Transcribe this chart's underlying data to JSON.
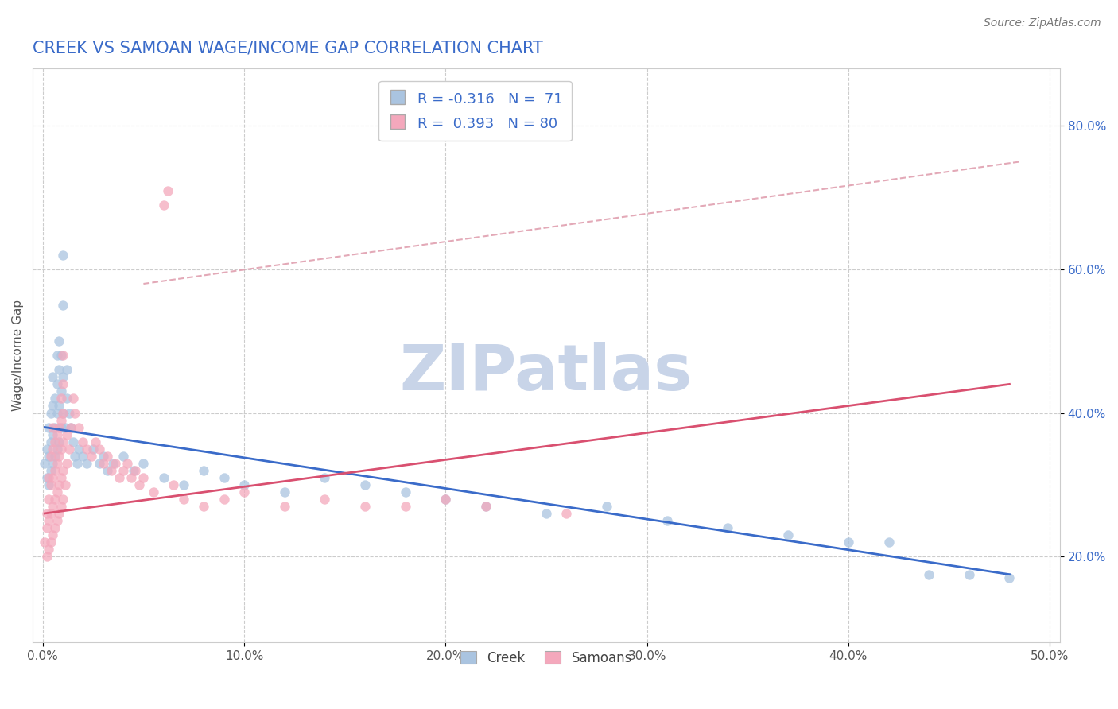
{
  "title": "CREEK VS SAMOAN WAGE/INCOME GAP CORRELATION CHART",
  "source": "Source: ZipAtlas.com",
  "ylabel": "Wage/Income Gap",
  "xlim": [
    -0.005,
    0.505
  ],
  "ylim": [
    0.08,
    0.88
  ],
  "xticks": [
    0.0,
    0.1,
    0.2,
    0.3,
    0.4,
    0.5
  ],
  "xticklabels": [
    "0.0%",
    "10.0%",
    "20.0%",
    "30.0%",
    "40.0%",
    "50.0%"
  ],
  "yticks": [
    0.2,
    0.4,
    0.6,
    0.8
  ],
  "yticklabels": [
    "20.0%",
    "40.0%",
    "60.0%",
    "80.0%"
  ],
  "creek_color": "#aac4e0",
  "samoan_color": "#f4a8bc",
  "creek_line_color": "#3a6bc9",
  "samoan_line_color": "#d95070",
  "dashed_line_color": "#e0a0b0",
  "title_color": "#3a6bc9",
  "title_fontsize": 15,
  "watermark": "ZIPatlas",
  "watermark_color": "#c8d4e8",
  "creek_dots": [
    [
      0.001,
      0.33
    ],
    [
      0.002,
      0.31
    ],
    [
      0.002,
      0.35
    ],
    [
      0.003,
      0.3
    ],
    [
      0.003,
      0.34
    ],
    [
      0.003,
      0.38
    ],
    [
      0.004,
      0.32
    ],
    [
      0.004,
      0.36
    ],
    [
      0.004,
      0.4
    ],
    [
      0.005,
      0.33
    ],
    [
      0.005,
      0.37
    ],
    [
      0.005,
      0.41
    ],
    [
      0.005,
      0.45
    ],
    [
      0.006,
      0.34
    ],
    [
      0.006,
      0.38
    ],
    [
      0.006,
      0.42
    ],
    [
      0.007,
      0.35
    ],
    [
      0.007,
      0.4
    ],
    [
      0.007,
      0.44
    ],
    [
      0.007,
      0.48
    ],
    [
      0.008,
      0.36
    ],
    [
      0.008,
      0.41
    ],
    [
      0.008,
      0.46
    ],
    [
      0.008,
      0.5
    ],
    [
      0.009,
      0.38
    ],
    [
      0.009,
      0.43
    ],
    [
      0.009,
      0.48
    ],
    [
      0.01,
      0.4
    ],
    [
      0.01,
      0.45
    ],
    [
      0.01,
      0.55
    ],
    [
      0.01,
      0.62
    ],
    [
      0.011,
      0.38
    ],
    [
      0.012,
      0.42
    ],
    [
      0.012,
      0.46
    ],
    [
      0.013,
      0.4
    ],
    [
      0.014,
      0.38
    ],
    [
      0.015,
      0.36
    ],
    [
      0.016,
      0.34
    ],
    [
      0.017,
      0.33
    ],
    [
      0.018,
      0.35
    ],
    [
      0.02,
      0.34
    ],
    [
      0.022,
      0.33
    ],
    [
      0.025,
      0.35
    ],
    [
      0.028,
      0.33
    ],
    [
      0.03,
      0.34
    ],
    [
      0.032,
      0.32
    ],
    [
      0.035,
      0.33
    ],
    [
      0.04,
      0.34
    ],
    [
      0.045,
      0.32
    ],
    [
      0.05,
      0.33
    ],
    [
      0.06,
      0.31
    ],
    [
      0.07,
      0.3
    ],
    [
      0.08,
      0.32
    ],
    [
      0.09,
      0.31
    ],
    [
      0.1,
      0.3
    ],
    [
      0.12,
      0.29
    ],
    [
      0.14,
      0.31
    ],
    [
      0.16,
      0.3
    ],
    [
      0.18,
      0.29
    ],
    [
      0.2,
      0.28
    ],
    [
      0.22,
      0.27
    ],
    [
      0.25,
      0.26
    ],
    [
      0.28,
      0.27
    ],
    [
      0.31,
      0.25
    ],
    [
      0.34,
      0.24
    ],
    [
      0.37,
      0.23
    ],
    [
      0.4,
      0.22
    ],
    [
      0.42,
      0.22
    ],
    [
      0.44,
      0.175
    ],
    [
      0.46,
      0.175
    ],
    [
      0.48,
      0.17
    ]
  ],
  "samoan_dots": [
    [
      0.001,
      0.22
    ],
    [
      0.002,
      0.2
    ],
    [
      0.002,
      0.24
    ],
    [
      0.002,
      0.26
    ],
    [
      0.003,
      0.21
    ],
    [
      0.003,
      0.25
    ],
    [
      0.003,
      0.28
    ],
    [
      0.003,
      0.31
    ],
    [
      0.004,
      0.22
    ],
    [
      0.004,
      0.26
    ],
    [
      0.004,
      0.3
    ],
    [
      0.004,
      0.34
    ],
    [
      0.005,
      0.23
    ],
    [
      0.005,
      0.27
    ],
    [
      0.005,
      0.31
    ],
    [
      0.005,
      0.35
    ],
    [
      0.005,
      0.38
    ],
    [
      0.006,
      0.24
    ],
    [
      0.006,
      0.28
    ],
    [
      0.006,
      0.32
    ],
    [
      0.006,
      0.36
    ],
    [
      0.007,
      0.25
    ],
    [
      0.007,
      0.29
    ],
    [
      0.007,
      0.33
    ],
    [
      0.007,
      0.37
    ],
    [
      0.008,
      0.26
    ],
    [
      0.008,
      0.3
    ],
    [
      0.008,
      0.34
    ],
    [
      0.008,
      0.38
    ],
    [
      0.009,
      0.27
    ],
    [
      0.009,
      0.31
    ],
    [
      0.009,
      0.35
    ],
    [
      0.009,
      0.39
    ],
    [
      0.009,
      0.42
    ],
    [
      0.01,
      0.28
    ],
    [
      0.01,
      0.32
    ],
    [
      0.01,
      0.36
    ],
    [
      0.01,
      0.4
    ],
    [
      0.01,
      0.44
    ],
    [
      0.01,
      0.48
    ],
    [
      0.011,
      0.3
    ],
    [
      0.012,
      0.33
    ],
    [
      0.012,
      0.37
    ],
    [
      0.013,
      0.35
    ],
    [
      0.014,
      0.38
    ],
    [
      0.015,
      0.42
    ],
    [
      0.016,
      0.4
    ],
    [
      0.018,
      0.38
    ],
    [
      0.02,
      0.36
    ],
    [
      0.022,
      0.35
    ],
    [
      0.024,
      0.34
    ],
    [
      0.026,
      0.36
    ],
    [
      0.028,
      0.35
    ],
    [
      0.03,
      0.33
    ],
    [
      0.032,
      0.34
    ],
    [
      0.034,
      0.32
    ],
    [
      0.036,
      0.33
    ],
    [
      0.038,
      0.31
    ],
    [
      0.04,
      0.32
    ],
    [
      0.042,
      0.33
    ],
    [
      0.044,
      0.31
    ],
    [
      0.046,
      0.32
    ],
    [
      0.048,
      0.3
    ],
    [
      0.05,
      0.31
    ],
    [
      0.055,
      0.29
    ],
    [
      0.06,
      0.69
    ],
    [
      0.062,
      0.71
    ],
    [
      0.065,
      0.3
    ],
    [
      0.07,
      0.28
    ],
    [
      0.08,
      0.27
    ],
    [
      0.09,
      0.28
    ],
    [
      0.1,
      0.29
    ],
    [
      0.12,
      0.27
    ],
    [
      0.14,
      0.28
    ],
    [
      0.16,
      0.27
    ],
    [
      0.18,
      0.27
    ],
    [
      0.2,
      0.28
    ],
    [
      0.22,
      0.27
    ],
    [
      0.26,
      0.26
    ]
  ],
  "creek_line_x": [
    0.001,
    0.48
  ],
  "creek_line_y": [
    0.38,
    0.175
  ],
  "samoan_line_x": [
    0.001,
    0.48
  ],
  "samoan_line_y": [
    0.26,
    0.44
  ],
  "dash_line_x": [
    0.05,
    0.485
  ],
  "dash_line_y": [
    0.58,
    0.75
  ]
}
